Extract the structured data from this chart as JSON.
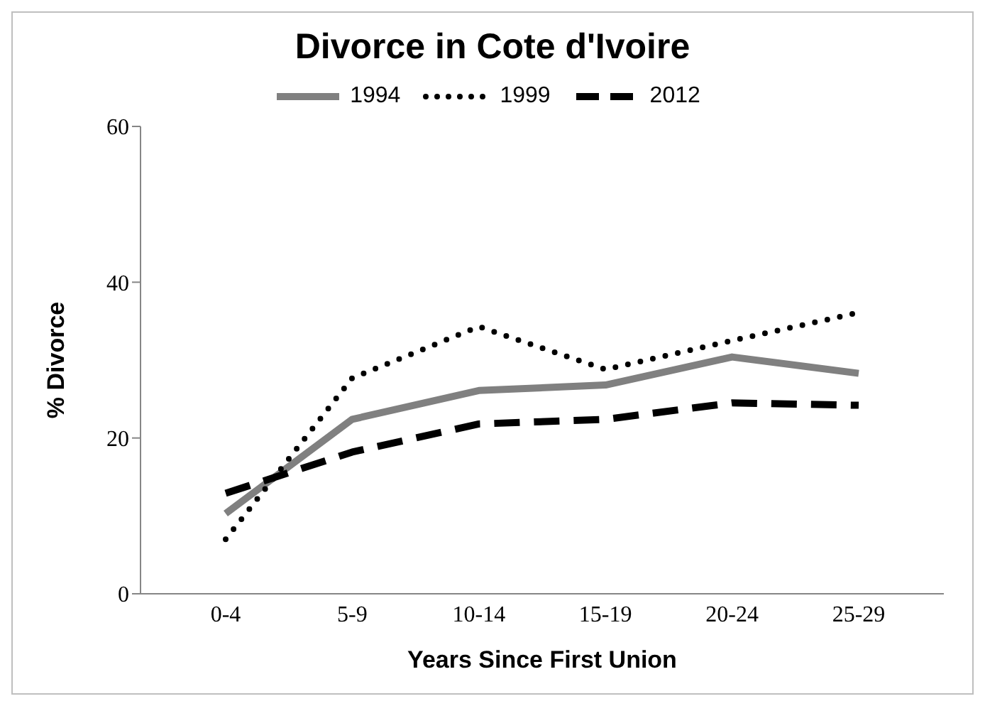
{
  "chart_data": {
    "type": "line",
    "title": "Divorce in Cote d'Ivoire",
    "xlabel": "Years Since First Union",
    "ylabel": "% Divorce",
    "categories": [
      "0-4",
      "5-9",
      "10-14",
      "15-19",
      "20-24",
      "25-29"
    ],
    "series": [
      {
        "name": "1994",
        "color": "#808080",
        "values": [
          10.3,
          22.4,
          26.1,
          26.8,
          30.4,
          28.3
        ],
        "line_style": "solid"
      },
      {
        "name": "1999",
        "color": "#000000",
        "values": [
          7,
          27.7,
          34.3,
          28.8,
          32.5,
          36.1
        ],
        "line_style": "dotted"
      },
      {
        "name": "2012",
        "color": "#000000",
        "values": [
          12.9,
          18.2,
          21.8,
          22.4,
          24.5,
          24.2
        ],
        "line_style": "dashed"
      }
    ],
    "ylim": [
      0,
      60
    ],
    "yticks": [
      0,
      20,
      40,
      60
    ],
    "grid": false,
    "legend": "top",
    "marker": "none"
  }
}
